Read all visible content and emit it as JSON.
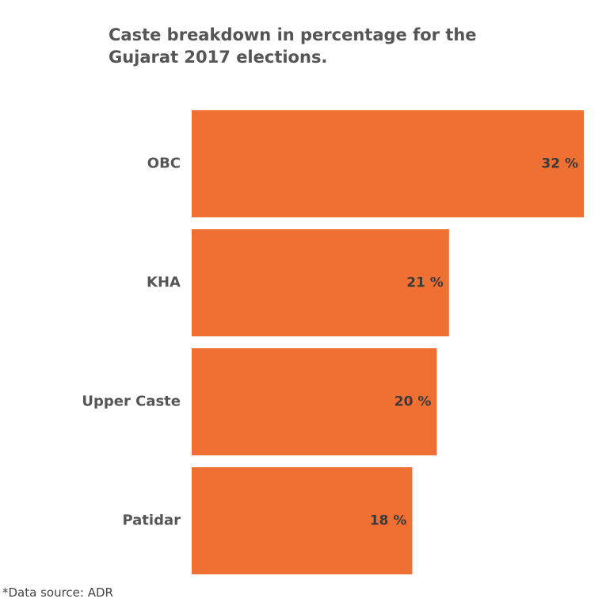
{
  "chart_data": {
    "type": "bar",
    "orientation": "horizontal",
    "title": "Caste breakdown in percentage for the Gujarat 2017 elections.",
    "categories": [
      "OBC",
      "KHA",
      "Upper Caste",
      "Patidar"
    ],
    "values": [
      32,
      21,
      20,
      18
    ],
    "value_labels": [
      "32 %",
      "21 %",
      "20 %",
      "18 %"
    ],
    "unit": "%",
    "xlim": [
      0,
      32
    ],
    "grid": false,
    "legend": "none",
    "bar_color": "#f07033"
  },
  "footer": {
    "source": "*Data source: ADR"
  }
}
